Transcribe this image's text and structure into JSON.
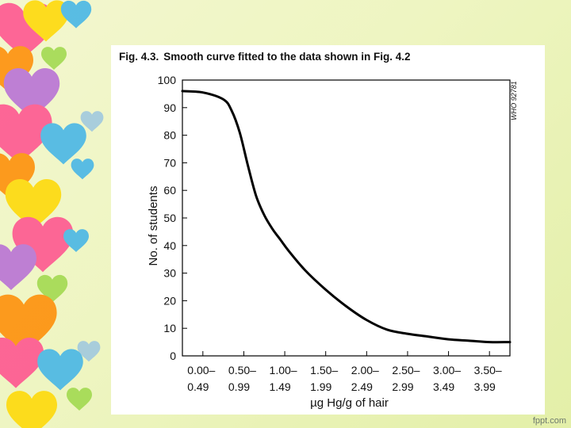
{
  "figure": {
    "label": "Fig. 4.3.",
    "caption": "Smooth curve fitted to the data shown in Fig. 4.2",
    "code": "WHO 92781"
  },
  "watermark": "fppt.com",
  "decor": {
    "icon": "hearts-border-icon",
    "colors": [
      "#ff4d8d",
      "#3fb3e8",
      "#ff8a00",
      "#ffd800",
      "#b66bd6",
      "#9ed84a"
    ]
  },
  "chart_data": {
    "type": "line",
    "xlabel": "µg Hg/g of hair",
    "ylabel": "No. of students",
    "categories": [
      {
        "top": "0.00–",
        "bottom": "0.49"
      },
      {
        "top": "0.50–",
        "bottom": "0.99"
      },
      {
        "top": "1.00–",
        "bottom": "1.49"
      },
      {
        "top": "1.50–",
        "bottom": "1.99"
      },
      {
        "top": "2.00–",
        "bottom": "2.49"
      },
      {
        "top": "2.50–",
        "bottom": "2.99"
      },
      {
        "top": "3.00–",
        "bottom": "3.49"
      },
      {
        "top": "3.50–",
        "bottom": "3.99"
      }
    ],
    "xlim": [
      0,
      4
    ],
    "ylim": [
      0,
      100
    ],
    "yticks": [
      0,
      10,
      20,
      30,
      40,
      50,
      60,
      70,
      80,
      90,
      100
    ],
    "grid": false,
    "series": [
      {
        "x": [
          0.0,
          0.25,
          0.5,
          0.6,
          0.7,
          0.8,
          0.9,
          1.0,
          1.1,
          1.2,
          1.3,
          1.5,
          1.75,
          2.0,
          2.25,
          2.5,
          2.75,
          3.0,
          3.25,
          3.5,
          3.75,
          4.0
        ],
        "y": [
          96,
          95.5,
          93,
          89,
          81,
          69,
          58,
          51,
          46,
          42,
          38,
          31,
          24,
          18,
          13,
          9.5,
          8,
          7,
          6,
          5.5,
          5,
          5
        ]
      }
    ]
  }
}
